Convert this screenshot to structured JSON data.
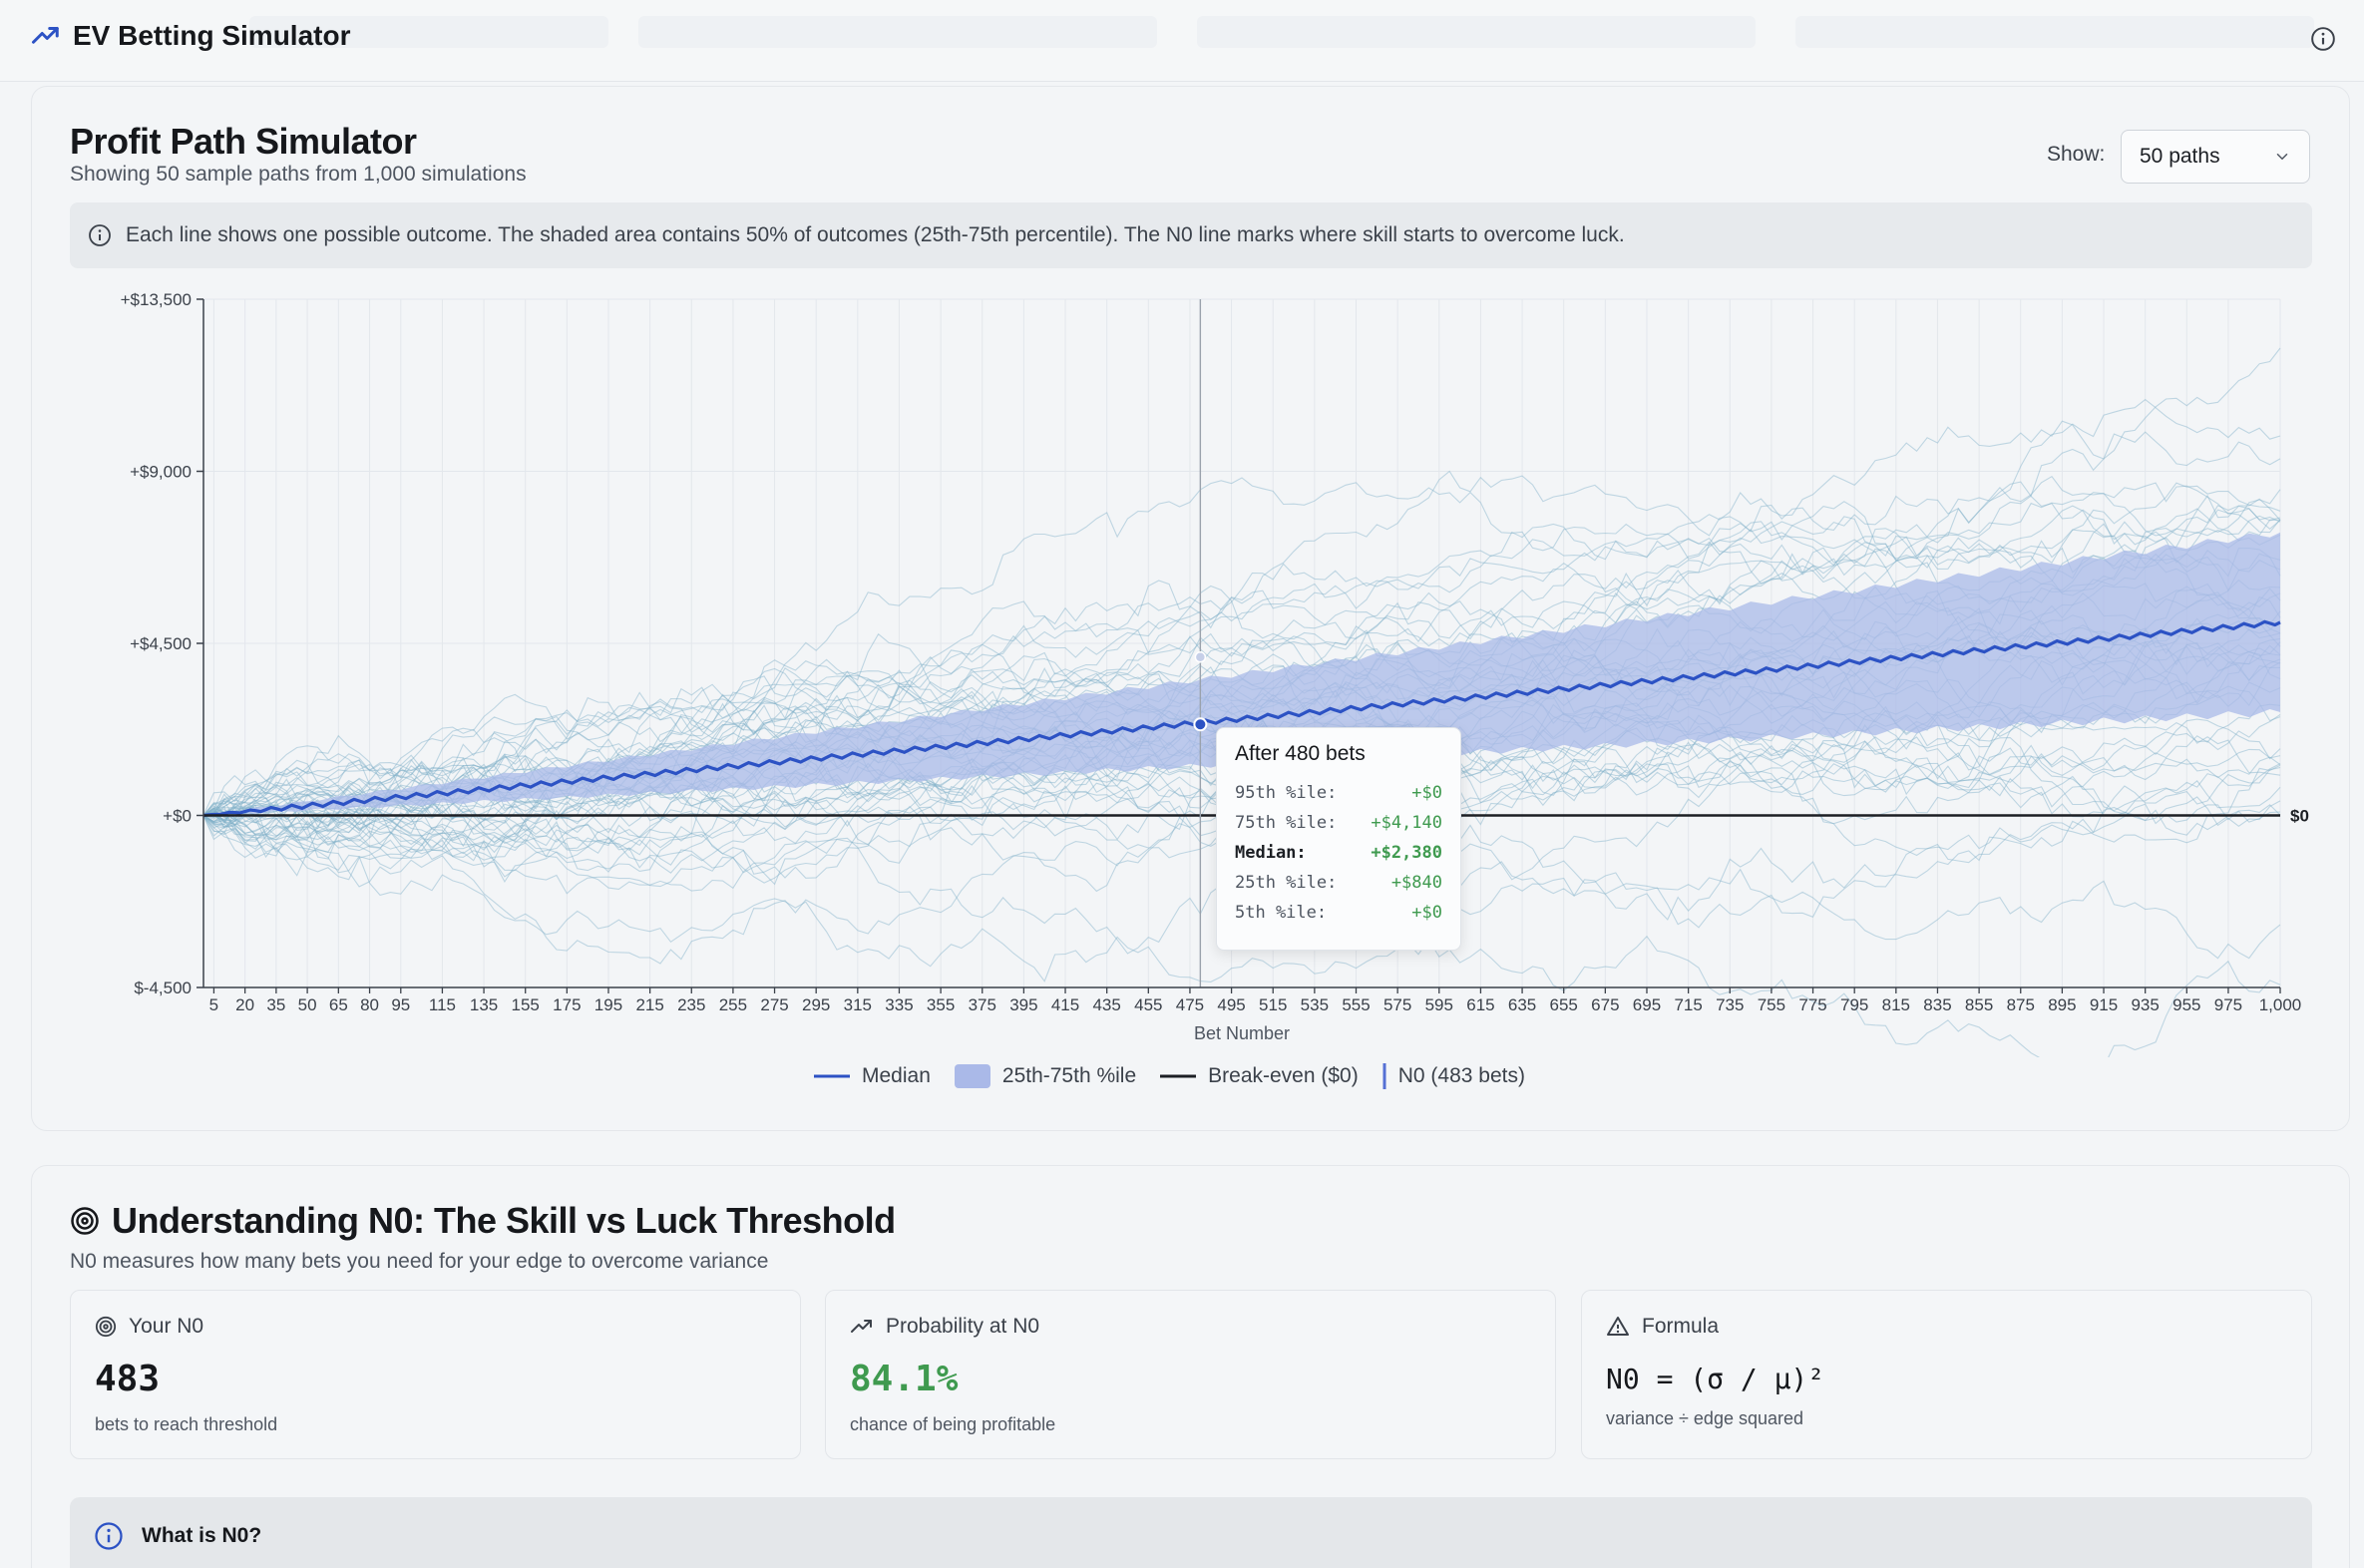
{
  "header": {
    "title": "EV Betting Simulator"
  },
  "simulator": {
    "title": "Profit Path Simulator",
    "subtitle": "Showing 50 sample paths from 1,000 simulations",
    "show_label": "Show:",
    "show_value": "50 paths",
    "info": "Each line shows one possible outcome. The shaded area contains 50% of outcomes (25th-75th percentile). The N0 line marks where skill starts to overcome luck."
  },
  "chart_data": {
    "type": "line",
    "xlabel": "Bet Number",
    "x_range": [
      0,
      1000
    ],
    "y_range": [
      -4500,
      13500
    ],
    "y_ticks": [
      {
        "value": 13500,
        "label": "+$13,500"
      },
      {
        "value": 9000,
        "label": "+$9,000"
      },
      {
        "value": 4500,
        "label": "+$4,500"
      },
      {
        "value": 0,
        "label": "+$0"
      },
      {
        "value": -4500,
        "label": "$-4,500"
      }
    ],
    "x_ticks": [
      5,
      20,
      35,
      50,
      65,
      80,
      95,
      115,
      135,
      155,
      175,
      195,
      215,
      235,
      255,
      275,
      295,
      315,
      335,
      355,
      375,
      395,
      415,
      435,
      455,
      475,
      495,
      515,
      535,
      555,
      575,
      595,
      615,
      635,
      655,
      675,
      695,
      715,
      735,
      755,
      775,
      795,
      815,
      835,
      855,
      875,
      895,
      915,
      935,
      955,
      975,
      1000
    ],
    "x_tick_labels": [
      "5",
      "20",
      "35",
      "50",
      "65",
      "80",
      "95",
      "115",
      "135",
      "155",
      "175",
      "195",
      "215",
      "235",
      "255",
      "275",
      "295",
      "315",
      "335",
      "355",
      "375",
      "395",
      "415",
      "435",
      "455",
      "475",
      "495",
      "515",
      "535",
      "555",
      "575",
      "595",
      "615",
      "635",
      "655",
      "675",
      "695",
      "715",
      "735",
      "755",
      "775",
      "795",
      "815",
      "835",
      "855",
      "875",
      "895",
      "915",
      "935",
      "955",
      "975",
      "1,000"
    ],
    "breakeven_label": "$0",
    "n0": 483,
    "hover_x": 480,
    "median_end": 5050,
    "p25_end": 2700,
    "p75_end": 7400,
    "sample_paths": 50,
    "grid": true,
    "legend": [
      "Median",
      "25th-75th %ile",
      "Break-even ($0)",
      "N0 (483 bets)"
    ],
    "colors": {
      "median": "#2c52c4",
      "band": "#aab9e8",
      "paths": "#7fb0c8",
      "breakeven": "#1c1f24",
      "n0": "#5570d4"
    }
  },
  "tooltip": {
    "title": "After 480 bets",
    "rows": [
      {
        "label": "95th %ile:",
        "value": "+$0"
      },
      {
        "label": "75th %ile:",
        "value": "+$4,140"
      },
      {
        "label": "Median:",
        "value": "+$2,380"
      },
      {
        "label": "25th %ile:",
        "value": "+$840"
      },
      {
        "label": "5th %ile:",
        "value": "+$0"
      }
    ]
  },
  "understanding": {
    "title": "Understanding N0: The Skill vs Luck Threshold",
    "subtitle": "N0 measures how many bets you need for your edge to overcome variance",
    "cards": [
      {
        "label": "Your N0",
        "value": "483",
        "note": "bets to reach threshold"
      },
      {
        "label": "Probability at N0",
        "value": "84.1%",
        "note": "chance of being profitable"
      },
      {
        "label": "Formula",
        "value": "N0 = (σ / μ)²",
        "note": "variance ÷ edge squared"
      }
    ],
    "what_title": "What is N0?"
  }
}
